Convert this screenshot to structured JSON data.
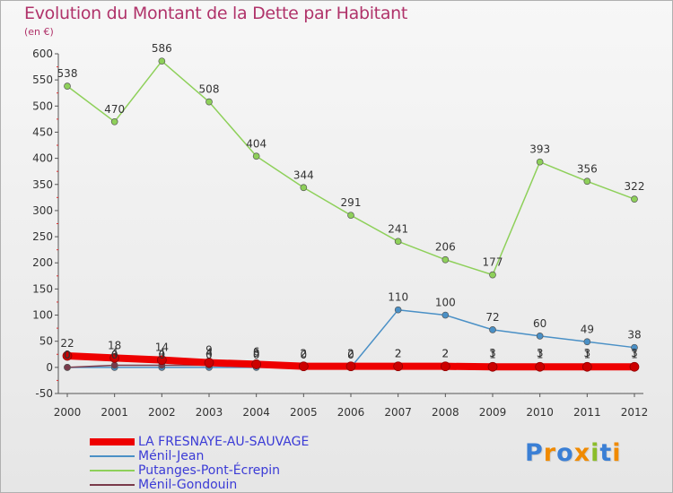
{
  "chart_data": {
    "type": "line",
    "title": "Evolution du Montant de la Dette par Habitant",
    "subtitle": "(en €)",
    "x": [
      "2000",
      "2001",
      "2002",
      "2003",
      "2004",
      "2005",
      "2006",
      "2007",
      "2008",
      "2009",
      "2010",
      "2011",
      "2012"
    ],
    "ylim": [
      -50,
      600
    ],
    "yticks": [
      -50,
      0,
      50,
      100,
      150,
      200,
      250,
      300,
      350,
      400,
      450,
      500,
      550,
      600
    ],
    "grid": false,
    "legend_position": "bottom-left",
    "series": [
      {
        "name": "LA FRESNAYE-AU-SAUVAGE",
        "color": "#ee0000",
        "values": [
          22,
          18,
          14,
          9,
          6,
          2,
          2,
          2,
          2,
          1,
          1,
          1,
          1
        ],
        "labels": [
          "22",
          "18",
          "14",
          "9",
          "6",
          "2",
          "2",
          "2",
          "2",
          "1",
          "1",
          "1",
          "1"
        ]
      },
      {
        "name": "Ménil-Jean",
        "color": "#4a90c6",
        "values": [
          0,
          0,
          0,
          0,
          0,
          0,
          0,
          110,
          100,
          72,
          60,
          49,
          38
        ],
        "labels": [
          "0",
          "0",
          "0",
          "0",
          "0",
          "0",
          "0",
          "110",
          "100",
          "72",
          "60",
          "49",
          "38"
        ]
      },
      {
        "name": "Putanges-Pont-Écrepin",
        "color": "#8ed05a",
        "values": [
          538,
          470,
          586,
          508,
          404,
          344,
          291,
          241,
          206,
          177,
          393,
          356,
          322
        ],
        "labels": [
          "538",
          "470",
          "586",
          "508",
          "404",
          "344",
          "291",
          "241",
          "206",
          "177",
          "393",
          "356",
          "322"
        ]
      },
      {
        "name": "Ménil-Gondouin",
        "color": "#7a3a4a",
        "values": [
          0,
          4,
          4,
          4,
          3,
          2,
          2,
          2,
          2,
          3,
          3,
          3,
          3
        ],
        "labels": [
          "0",
          "4",
          "4",
          "4",
          "3",
          "2",
          "2",
          "2",
          "2",
          "3",
          "3",
          "3",
          "3"
        ]
      }
    ]
  },
  "brand": {
    "letters": [
      "P",
      "r",
      "o",
      "x",
      "i",
      "t",
      "i"
    ],
    "colors": [
      "#3a7fd5",
      "#f08a00",
      "#3a7fd5",
      "#f08a00",
      "#8bbd2a",
      "#3a7fd5",
      "#f08a00"
    ]
  }
}
